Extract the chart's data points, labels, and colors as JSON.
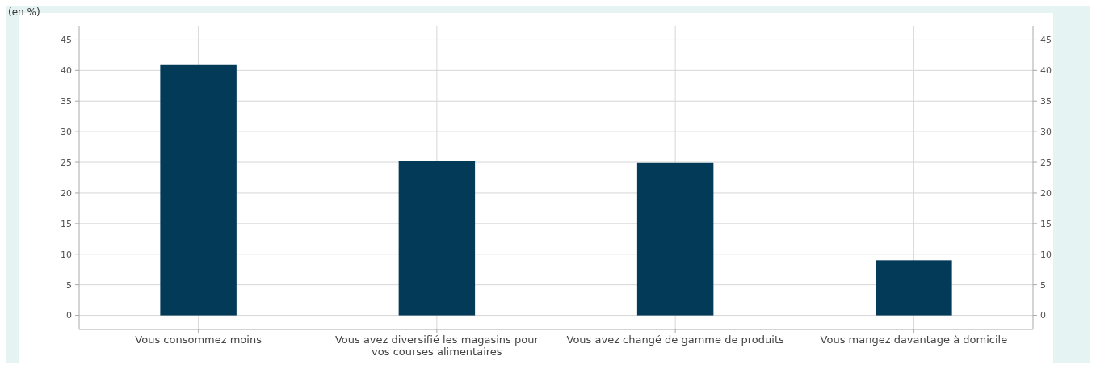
{
  "chart_data": {
    "type": "bar",
    "ylabel": "(en %)",
    "categories": [
      "Vous consommez moins",
      "Vous avez diversifié les magasins pour vos courses alimentaires",
      "Vous avez changé de gamme de produits",
      "Vous mangez davantage à domicile"
    ],
    "values": [
      41,
      25.2,
      24.9,
      9
    ],
    "color": "#033a58",
    "ylim": [
      -2.3,
      47.3
    ],
    "yticks": [
      0,
      5,
      10,
      15,
      20,
      25,
      30,
      35,
      40,
      45
    ],
    "y2lim": [
      -2.3,
      47.3
    ],
    "y2ticks": [
      0,
      5,
      10,
      15,
      20,
      25,
      30,
      35,
      40,
      45
    ],
    "grid": true
  }
}
